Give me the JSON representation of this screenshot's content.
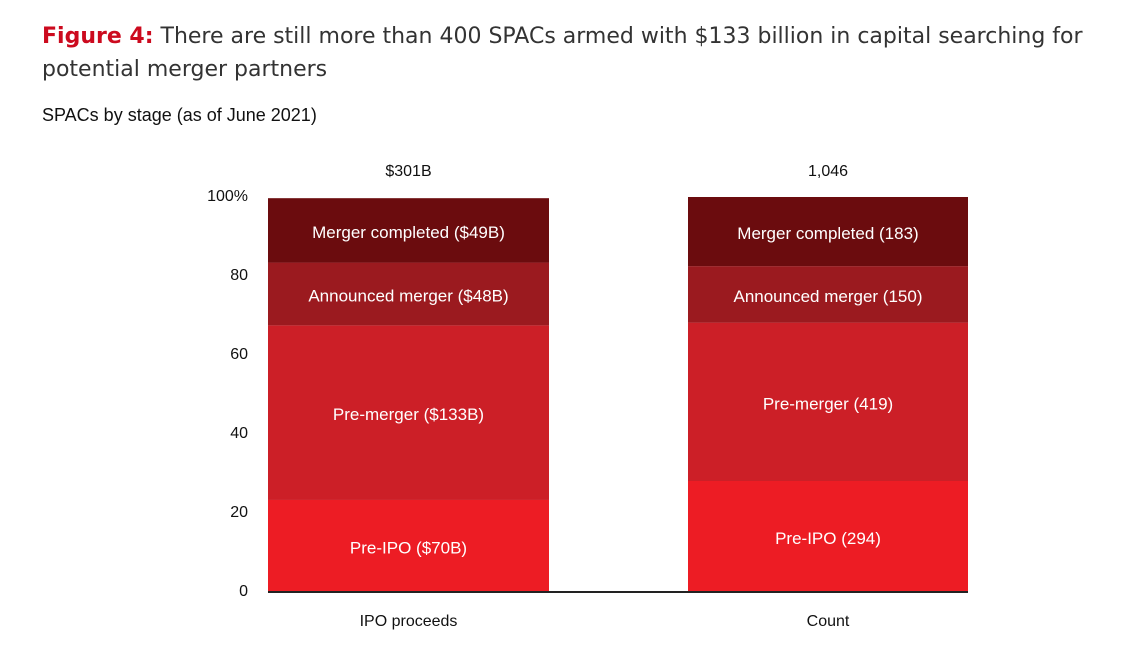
{
  "chart_data": {
    "type": "stacked_bar_100",
    "title_prefix": "Figure 4:",
    "title": "There are still more than 400 SPACs armed with $133 billion in capital searching for potential merger partners",
    "subtitle": "SPACs by stage (as of June 2021)",
    "categories": [
      "IPO proceeds",
      "Count"
    ],
    "totals": [
      "$301B",
      "1,046"
    ],
    "series": [
      {
        "color": "#ed1c24",
        "values": [
          23.3,
          28.1
        ],
        "labels": [
          "Pre-IPO ($70B)",
          "Pre-IPO (294)"
        ]
      },
      {
        "color": "#cc1f27",
        "values": [
          44.2,
          40.1
        ],
        "labels": [
          "Pre-merger ($133B)",
          "Pre-merger (419)"
        ]
      },
      {
        "color": "#9b1a1f",
        "values": [
          15.9,
          14.3
        ],
        "labels": [
          "Announced merger ($48B)",
          "Announced merger (150)"
        ]
      },
      {
        "color": "#6b0c0e",
        "values": [
          16.3,
          17.5
        ],
        "labels": [
          "Merger completed ($49B)",
          "Merger completed (183)"
        ]
      }
    ],
    "ylim": [
      0,
      100
    ],
    "yticks": [
      0,
      20,
      40,
      60,
      80,
      {
        "value": 100,
        "label": "100%"
      }
    ]
  }
}
